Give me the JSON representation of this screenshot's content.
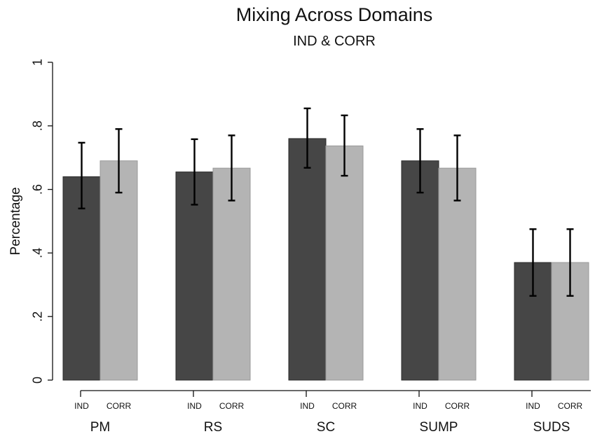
{
  "chart_data": {
    "type": "bar",
    "title": "Mixing Across Domains",
    "subtitle": "IND & CORR",
    "ylabel": "Percentage",
    "ylim": [
      0,
      1
    ],
    "yticks": [
      0,
      0.2,
      0.4,
      0.6,
      0.8,
      1
    ],
    "ytick_labels": [
      "0",
      ".2",
      ".4",
      ".6",
      ".8",
      "1"
    ],
    "categories": [
      "PM",
      "RS",
      "SC",
      "SUMP",
      "SUDS"
    ],
    "series": [
      {
        "name": "IND",
        "color": "#464646",
        "values": [
          0.64,
          0.655,
          0.76,
          0.69,
          0.37
        ],
        "ci_low": [
          0.54,
          0.552,
          0.668,
          0.59,
          0.265
        ],
        "ci_high": [
          0.747,
          0.758,
          0.855,
          0.79,
          0.475
        ]
      },
      {
        "name": "CORR",
        "color": "#b4b4b4",
        "values": [
          0.69,
          0.667,
          0.737,
          0.667,
          0.37
        ],
        "ci_low": [
          0.59,
          0.565,
          0.643,
          0.565,
          0.265
        ],
        "ci_high": [
          0.79,
          0.77,
          0.833,
          0.77,
          0.475
        ]
      }
    ],
    "grid": false,
    "legend": "none"
  }
}
